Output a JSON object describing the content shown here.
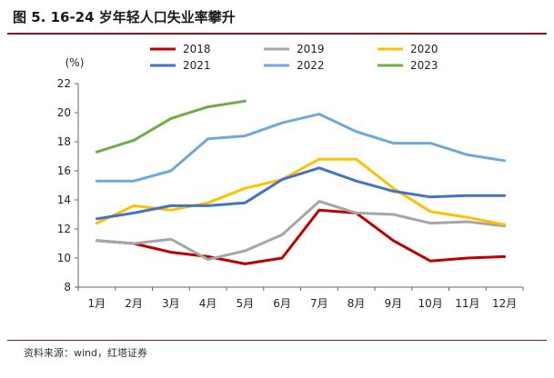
{
  "figure": {
    "title": "图 5. 16-24 岁年轻人口失业率攀升",
    "source": "资料来源：wind，红塔证券"
  },
  "chart_data": {
    "type": "line",
    "title": "16-24 岁年轻人口失业率攀升",
    "ylabel": "(%)",
    "xlabel": "",
    "categories": [
      "1月",
      "2月",
      "3月",
      "4月",
      "5月",
      "6月",
      "7月",
      "8月",
      "9月",
      "10月",
      "11月",
      "12月"
    ],
    "ylim": [
      8,
      22
    ],
    "yticks": [
      "8",
      "10",
      "12",
      "14",
      "16",
      "18",
      "20",
      "22"
    ],
    "legend_position": "top",
    "series": [
      {
        "name": "2018",
        "color": "#c00000",
        "values": [
          11.2,
          11.0,
          10.4,
          10.1,
          9.6,
          10.0,
          13.3,
          13.1,
          11.2,
          9.8,
          10.0,
          10.1
        ]
      },
      {
        "name": "2019",
        "color": "#a6a6a6",
        "values": [
          11.2,
          11.0,
          11.3,
          9.9,
          10.5,
          11.6,
          13.9,
          13.1,
          13.0,
          12.4,
          12.5,
          12.2
        ]
      },
      {
        "name": "2020",
        "color": "#ffc000",
        "values": [
          12.4,
          13.6,
          13.3,
          13.8,
          14.8,
          15.4,
          16.8,
          16.8,
          14.8,
          13.2,
          12.8,
          12.3
        ]
      },
      {
        "name": "2021",
        "color": "#4472c4",
        "values": [
          12.7,
          13.1,
          13.6,
          13.6,
          13.8,
          15.4,
          16.2,
          15.3,
          14.6,
          14.2,
          14.3,
          14.3
        ]
      },
      {
        "name": "2022",
        "color": "#6fa8dc",
        "values": [
          15.3,
          15.3,
          16.0,
          18.2,
          18.4,
          19.3,
          19.9,
          18.7,
          17.9,
          17.9,
          17.1,
          16.7
        ]
      },
      {
        "name": "2023",
        "color": "#70ad47",
        "values": [
          17.3,
          18.1,
          19.6,
          20.4,
          20.8,
          null,
          null,
          null,
          null,
          null,
          null,
          null
        ]
      }
    ]
  }
}
